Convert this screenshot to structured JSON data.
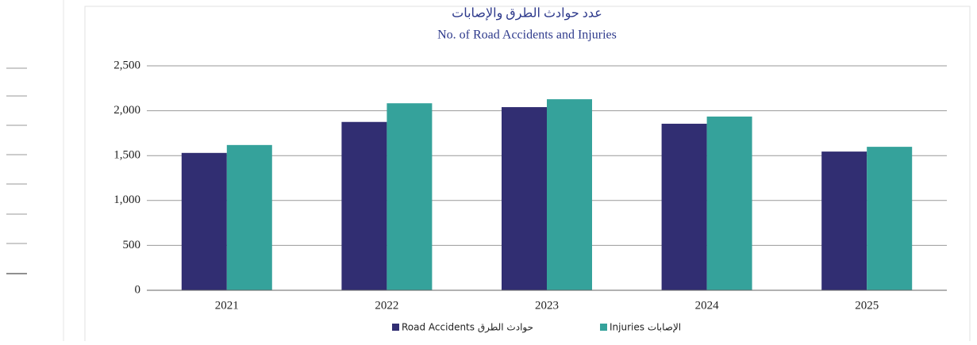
{
  "chart_data": {
    "type": "bar",
    "title": "عدد حوادث الطرق والإصابات",
    "subtitle": "No. of Road Accidents and Injuries",
    "categories": [
      "2021",
      "2022",
      "2023",
      "2024",
      "2025"
    ],
    "series": [
      {
        "name": "Road Accidents حوادث الطرق",
        "color": "#312e72",
        "values": [
          1530,
          1875,
          2040,
          1855,
          1545
        ]
      },
      {
        "name": "Injuries الإصابات",
        "color": "#35a29b",
        "values": [
          1618,
          2083,
          2128,
          1935,
          1598
        ]
      }
    ],
    "ylim": [
      0,
      2500
    ],
    "yticks": [
      0,
      500,
      {
        "value": 1000,
        "label": "1,000"
      },
      {
        "value": 1500,
        "label": "1,500"
      },
      {
        "value": 2000,
        "label": "2,000"
      },
      {
        "value": 2500,
        "label": "2,500"
      }
    ],
    "grid": true,
    "legend": "bottom"
  }
}
